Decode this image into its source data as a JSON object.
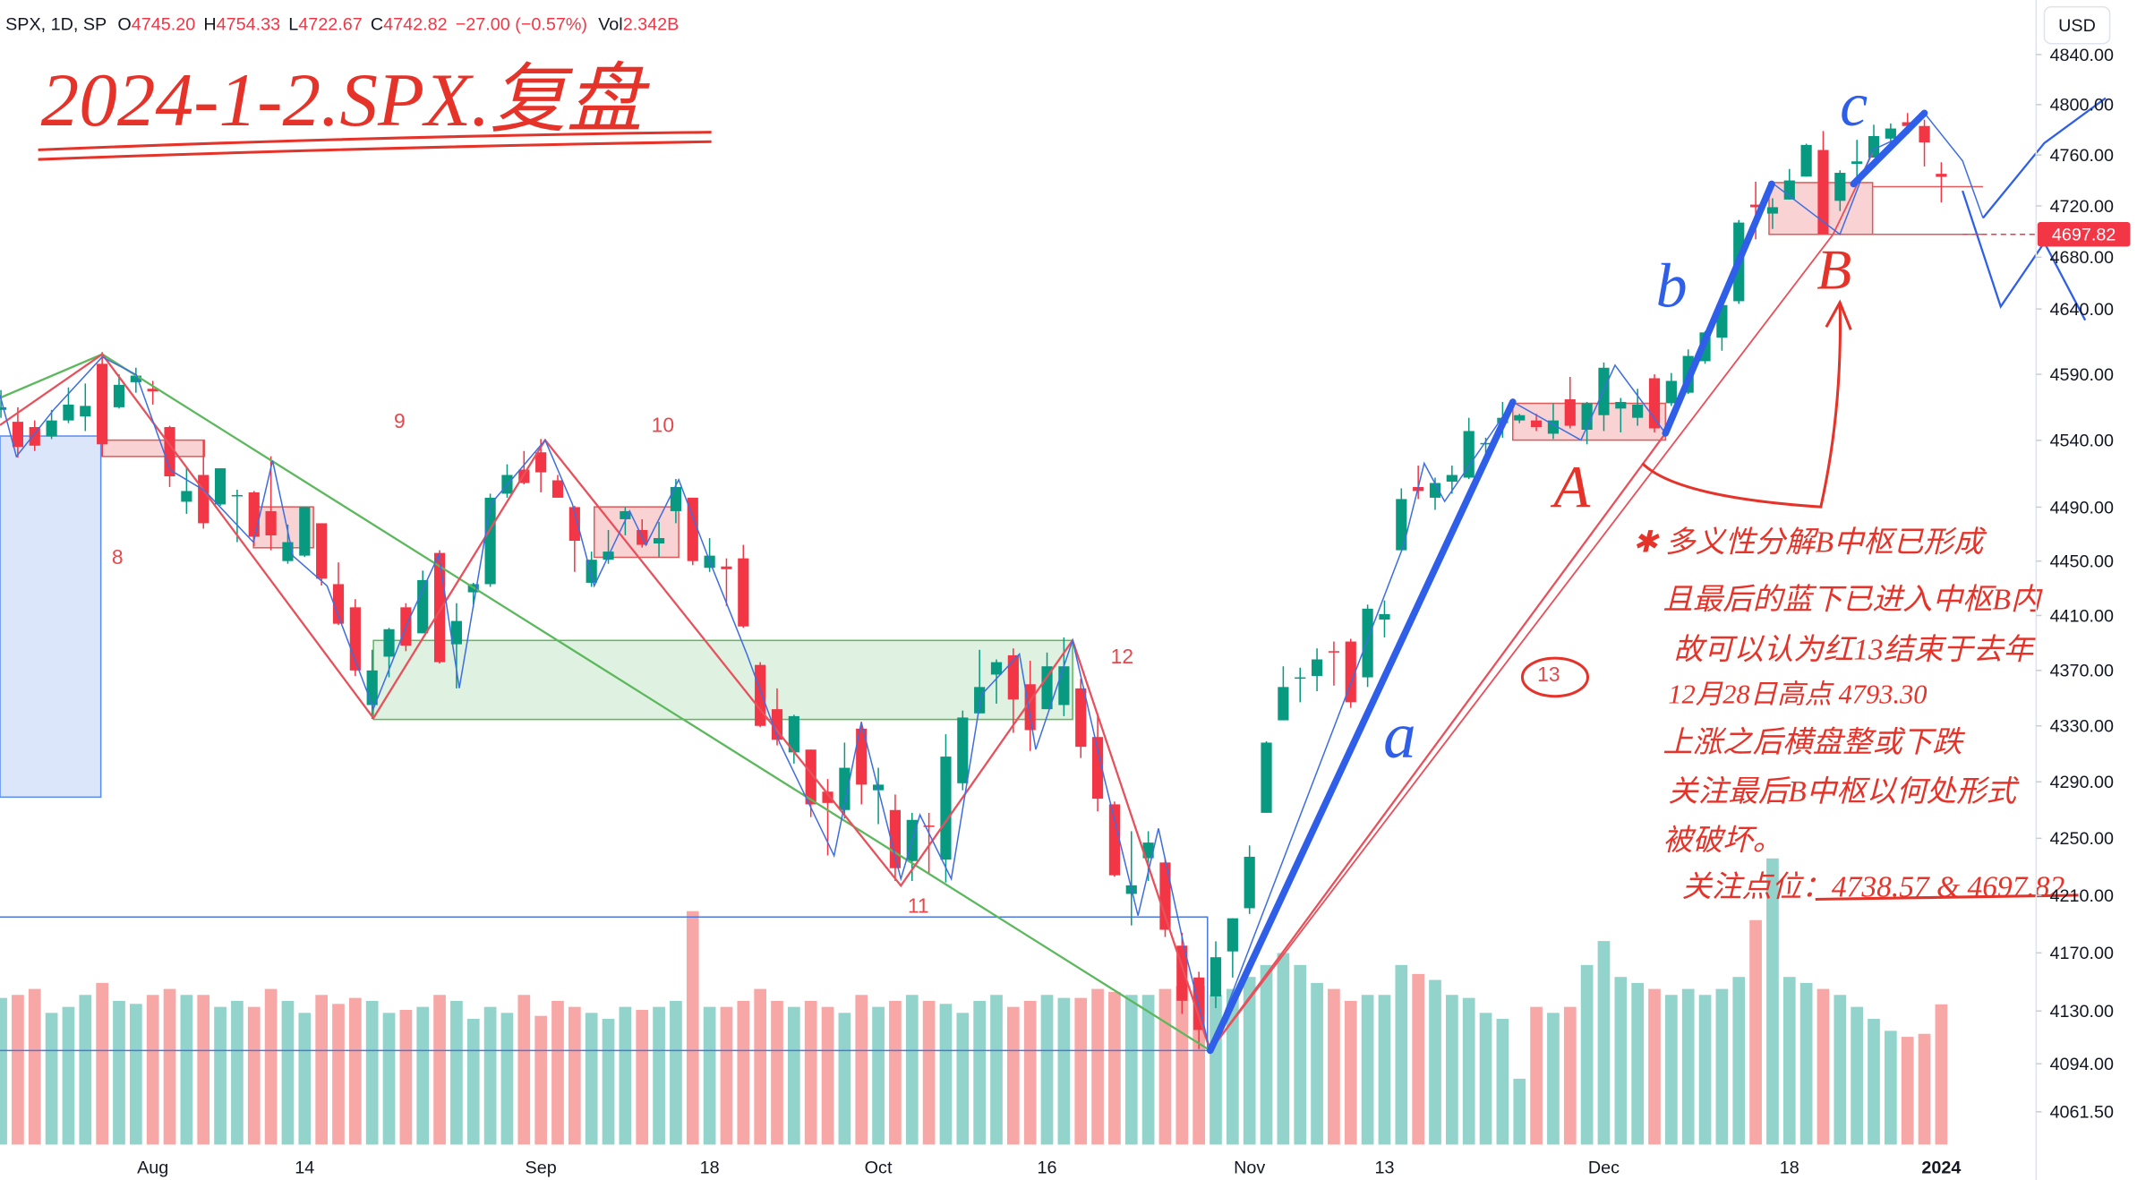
{
  "chart_data": {
    "type": "candlestick",
    "title": "2024-1-2.SPX.复盘",
    "header": {
      "symbol": "SPX, 1D, SP",
      "open_label": "O",
      "open": "4745.20",
      "high_label": "H",
      "high": "4754.33",
      "low_label": "L",
      "low": "4722.67",
      "close_label": "C",
      "close": "4742.82",
      "change": "−27.00 (−0.57%)",
      "volume_label": "Vol",
      "volume": "2.342B"
    },
    "currency": "USD",
    "categories": [
      null,
      null,
      null,
      null,
      null,
      null,
      null,
      null,
      null,
      "Aug",
      null,
      null,
      null,
      null,
      null,
      null,
      null,
      null,
      "14",
      null,
      null,
      null,
      null,
      null,
      null,
      null,
      null,
      null,
      null,
      null,
      null,
      null,
      "Sep",
      null,
      null,
      null,
      null,
      null,
      null,
      null,
      null,
      null,
      "18",
      null,
      null,
      null,
      null,
      null,
      null,
      null,
      null,
      null,
      "Oct",
      null,
      null,
      null,
      null,
      null,
      null,
      null,
      null,
      null,
      "16",
      null,
      null,
      null,
      null,
      null,
      null,
      null,
      null,
      null,
      null,
      null,
      "Nov",
      null,
      null,
      null,
      null,
      null,
      null,
      null,
      "13",
      null,
      null,
      null,
      null,
      null,
      null,
      null,
      null,
      null,
      null,
      null,
      null,
      "Dec",
      null,
      null,
      null,
      null,
      null,
      null,
      null,
      null,
      null,
      null,
      "18",
      null,
      null,
      null,
      null,
      null,
      null,
      null,
      null,
      "2024"
    ],
    "open": [
      4563,
      4554,
      4550,
      4543,
      4555,
      4558,
      4598,
      4565,
      4584,
      4579,
      4550,
      4494,
      4514,
      4492,
      4498,
      4501,
      4487,
      4450,
      4454,
      4478,
      4433,
      4416,
      4345,
      4380,
      4416,
      4397,
      4456,
      4389,
      4427,
      4433,
      4500,
      4518,
      4531,
      4510,
      4490,
      4434,
      4451,
      4481,
      4473,
      4463,
      4487,
      4497,
      4445,
      4446,
      4452,
      4374,
      4342,
      4311,
      4313,
      4283,
      4270,
      4328,
      4284,
      4270,
      4234,
      4259,
      4235,
      4289,
      4339,
      4367,
      4381,
      4360,
      4342,
      4345,
      4357,
      4322,
      4274,
      4211,
      4236,
      4233,
      4175,
      4153,
      4140,
      4171,
      4201,
      4268,
      4334,
      4365,
      4366,
      4384,
      4391,
      4365,
      4407,
      4458,
      4505,
      4497,
      4509,
      4512,
      4538,
      4553,
      4555,
      4555,
      4545,
      4571,
      4548,
      4559,
      4564,
      4557,
      4587,
      4568,
      4576,
      4600,
      4618,
      4646,
      4721,
      4714,
      4725,
      4743,
      4764,
      4724,
      4753,
      4758,
      4773,
      4786,
      4783,
      4745.2
    ],
    "high": [
      4578,
      4565,
      4555,
      4563,
      4580,
      4583,
      4607,
      4590,
      4595,
      4585,
      4551,
      4519,
      4540,
      4519,
      4503,
      4502,
      4528,
      4477,
      4490,
      4478,
      4449,
      4422,
      4385,
      4401,
      4419,
      4443,
      4458,
      4419,
      4434,
      4500,
      4522,
      4532,
      4541,
      4514,
      4491,
      4457,
      4473,
      4490,
      4481,
      4479,
      4511,
      4497,
      4467,
      4452,
      4462,
      4376,
      4357,
      4338,
      4313,
      4292,
      4318,
      4333,
      4300,
      4281,
      4268,
      4268,
      4324,
      4341,
      4385,
      4378,
      4386,
      4377,
      4383,
      4394,
      4364,
      4339,
      4276,
      4255,
      4255,
      4236,
      4184,
      4157,
      4178,
      4194,
      4245,
      4319,
      4373,
      4372,
      4386,
      4391,
      4393,
      4418,
      4421,
      4504,
      4521,
      4512,
      4521,
      4557,
      4542,
      4569,
      4560,
      4560,
      4568,
      4588,
      4569,
      4599,
      4572,
      4579,
      4590,
      4591,
      4609,
      4623,
      4643,
      4709,
      4739,
      4726,
      4749,
      4769,
      4779,
      4748,
      4772,
      4784,
      4785,
      4793.3,
      4788,
      4754.33
    ],
    "low": [
      4557,
      4527,
      4532,
      4541,
      4553,
      4547,
      4528,
      4564,
      4576,
      4567,
      4505,
      4485,
      4474,
      4491,
      4464,
      4461,
      4458,
      4448,
      4453,
      4432,
      4403,
      4366,
      4335,
      4365,
      4384,
      4397,
      4375,
      4357,
      4416,
      4431,
      4497,
      4507,
      4501,
      4497,
      4442,
      4431,
      4448,
      4469,
      4460,
      4453,
      4478,
      4447,
      4442,
      4417,
      4401,
      4329,
      4316,
      4303,
      4265,
      4238,
      4264,
      4274,
      4260,
      4220,
      4220,
      4225,
      4219,
      4284,
      4339,
      4346,
      4325,
      4312,
      4342,
      4337,
      4307,
      4269,
      4223,
      4189,
      4220,
      4181,
      4128,
      4104,
      4132,
      4153,
      4197,
      4268,
      4334,
      4347,
      4355,
      4359,
      4343,
      4358,
      4394,
      4458,
      4496,
      4488,
      4500,
      4511,
      4526,
      4542,
      4553,
      4547,
      4541,
      4549,
      4537,
      4547,
      4546,
      4551,
      4546,
      4566,
      4575,
      4598,
      4608,
      4644,
      4694,
      4702,
      4725,
      4743,
      4698,
      4716,
      4736,
      4758,
      4768,
      4781,
      4751,
      4722.67
    ],
    "close": [
      4565,
      4535,
      4536,
      4555,
      4567,
      4566,
      4537,
      4582,
      4589,
      4577,
      4513,
      4502,
      4478,
      4519,
      4499,
      4468,
      4469,
      4464,
      4490,
      4437,
      4404,
      4370,
      4370,
      4400,
      4388,
      4436,
      4376,
      4406,
      4433,
      4497,
      4514,
      4508,
      4516,
      4497,
      4465,
      4451,
      4457,
      4487,
      4462,
      4467,
      4505,
      4450,
      4454,
      4444,
      4402,
      4330,
      4320,
      4337,
      4274,
      4275,
      4300,
      4288,
      4288,
      4229,
      4263,
      4258,
      4308,
      4336,
      4358,
      4376,
      4349,
      4327,
      4373,
      4373,
      4315,
      4278,
      4224,
      4217,
      4247,
      4186,
      4137,
      4117,
      4167,
      4194,
      4237,
      4318,
      4358,
      4365,
      4378,
      4383,
      4347,
      4415,
      4411,
      4496,
      4502,
      4508,
      4514,
      4547,
      4538,
      4557,
      4559,
      4550,
      4555,
      4551,
      4568,
      4595,
      4569,
      4567,
      4549,
      4585,
      4604,
      4622,
      4643,
      4707,
      4719,
      4719,
      4740,
      4768,
      4698,
      4746,
      4755,
      4775,
      4781,
      4783,
      4770,
      4742.82
    ],
    "volume": [
      2.45,
      2.5,
      2.6,
      2.2,
      2.3,
      2.5,
      2.7,
      2.4,
      2.35,
      2.5,
      2.6,
      2.5,
      2.5,
      2.3,
      2.4,
      2.3,
      2.6,
      2.4,
      2.2,
      2.5,
      2.35,
      2.45,
      2.4,
      2.2,
      2.25,
      2.3,
      2.5,
      2.4,
      2.1,
      2.3,
      2.2,
      2.5,
      2.15,
      2.4,
      2.3,
      2.2,
      2.1,
      2.3,
      2.25,
      2.3,
      2.4,
      3.9,
      2.3,
      2.3,
      2.4,
      2.6,
      2.4,
      2.3,
      2.4,
      2.3,
      2.2,
      2.5,
      2.3,
      2.4,
      2.5,
      2.4,
      2.35,
      2.2,
      2.4,
      2.5,
      2.3,
      2.4,
      2.5,
      2.45,
      2.45,
      2.6,
      2.55,
      2.5,
      2.5,
      2.6,
      2.65,
      2.65,
      2.5,
      2.6,
      2.8,
      3.0,
      3.2,
      3.0,
      2.7,
      2.6,
      2.4,
      2.5,
      2.5,
      3.0,
      2.85,
      2.75,
      2.5,
      2.45,
      2.2,
      2.1,
      1.1,
      2.3,
      2.2,
      2.3,
      3.0,
      3.4,
      2.8,
      2.7,
      2.6,
      2.5,
      2.6,
      2.5,
      2.6,
      2.8,
      3.75,
      4.78,
      2.8,
      2.7,
      2.6,
      2.5,
      2.3,
      2.1,
      1.9,
      1.8,
      1.85,
      2.342
    ],
    "up_color": "#089981",
    "down_color": "#f23645",
    "volume_up_color": "#92d3cc",
    "volume_down_color": "#f7a8a6",
    "log": true,
    "grid": false,
    "ylim": [
      4039.5,
      4884
    ],
    "yticks": [
      {
        "value": 4840,
        "label": "4840.00"
      },
      {
        "value": 4800,
        "label": "4800.00"
      },
      {
        "value": 4760,
        "label": "4760.00"
      },
      {
        "value": 4720,
        "label": "4720.00"
      },
      {
        "value": 4680,
        "label": "4680.00"
      },
      {
        "value": 4640,
        "label": "4640.00"
      },
      {
        "value": 4590,
        "label": "4590.00"
      },
      {
        "value": 4540,
        "label": "4540.00"
      },
      {
        "value": 4490,
        "label": "4490.00"
      },
      {
        "value": 4450,
        "label": "4450.00"
      },
      {
        "value": 4410,
        "label": "4410.00"
      },
      {
        "value": 4370,
        "label": "4370.00"
      },
      {
        "value": 4330,
        "label": "4330.00"
      },
      {
        "value": 4290,
        "label": "4290.00"
      },
      {
        "value": 4250,
        "label": "4250.00"
      },
      {
        "value": 4210,
        "label": "4210.00"
      },
      {
        "value": 4170,
        "label": "4170.00"
      },
      {
        "value": 4130,
        "label": "4130.00"
      },
      {
        "value": 4094,
        "label": "4094.00"
      },
      {
        "value": 4061.5,
        "label": "4061.50"
      }
    ],
    "price_line": {
      "value": 4697.82,
      "label": "4697.82",
      "color": "#f23645"
    },
    "wave_labels": [
      "8",
      "9",
      "10",
      "11",
      "12",
      "13",
      "a",
      "b",
      "c",
      "A",
      "B"
    ],
    "notes": [
      "✱ 多义性分解B中枢已形成",
      "且最后的蓝下已进入中枢B内",
      "故可以认为红13结束于去年",
      "12月28日高点 4793.30",
      "上涨之后横盘整或下跌",
      "关注最后B中枢以何处形式",
      "被破坏。",
      "关注点位：4738.57 & 4697.82"
    ]
  }
}
